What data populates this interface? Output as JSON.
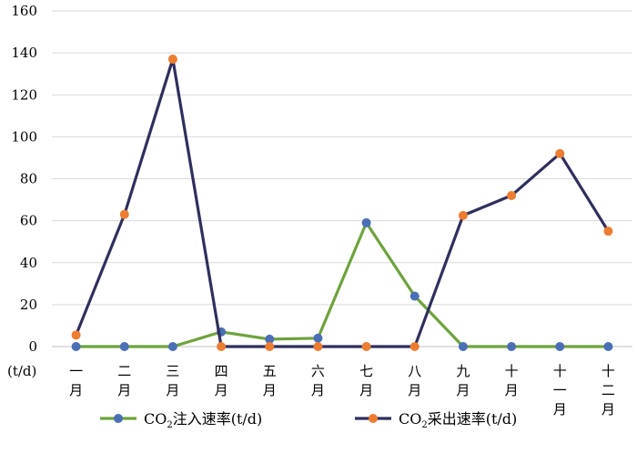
{
  "chart_data": {
    "type": "line",
    "categories": [
      "一月",
      "二月",
      "三月",
      "四月",
      "五月",
      "六月",
      "七月",
      "八月",
      "九月",
      "十月",
      "十一月",
      "十二月"
    ],
    "series": [
      {
        "name": "CO₂注入速率(t/d)",
        "name_parts": [
          "CO",
          "2",
          "注入速率(t/d)"
        ],
        "values": [
          0,
          0,
          0,
          7,
          3.5,
          4,
          59,
          24,
          0,
          0,
          0,
          0
        ],
        "line_color": "#6ea33d",
        "marker_color": "#4a6fb5"
      },
      {
        "name": "CO₂采出速率(t/d)",
        "name_parts": [
          "CO",
          "2",
          "采出速率(t/d)"
        ],
        "values": [
          5.5,
          63,
          137,
          0,
          0,
          0,
          0,
          0,
          62.5,
          72,
          92,
          55
        ],
        "line_color": "#2f2f5e",
        "marker_color": "#ed7d31"
      }
    ],
    "yticks": [
      0,
      20,
      40,
      60,
      80,
      100,
      120,
      140,
      160
    ],
    "ylim": [
      0,
      160
    ],
    "unit_label": "(t/d)",
    "grid": true,
    "legend_position": "bottom"
  }
}
